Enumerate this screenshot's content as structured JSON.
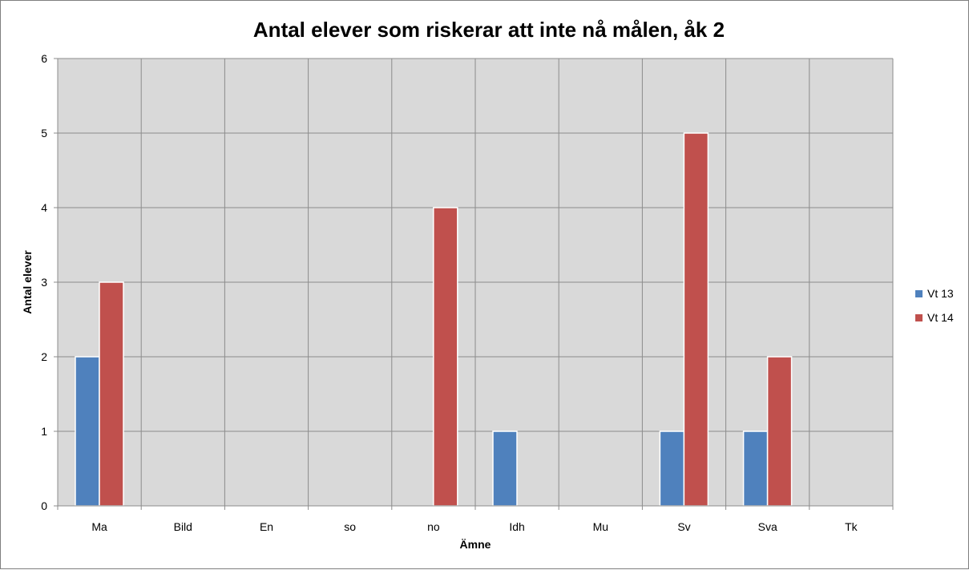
{
  "chart_data": {
    "type": "bar",
    "title": "Antal elever som riskerar att inte nå målen, åk 2",
    "xlabel": "Ämne",
    "ylabel": "Antal elever",
    "categories": [
      "Ma",
      "Bild",
      "En",
      "so",
      "no",
      "Idh",
      "Mu",
      "Sv",
      "Sva",
      "Tk"
    ],
    "series": [
      {
        "name": "Vt 13",
        "color": "#4f81bd",
        "values": [
          2,
          0,
          0,
          0,
          0,
          1,
          0,
          1,
          1,
          0
        ]
      },
      {
        "name": "Vt 14",
        "color": "#c0504d",
        "values": [
          3,
          0,
          0,
          0,
          4,
          0,
          0,
          5,
          2,
          0
        ]
      }
    ],
    "ylim": [
      0,
      6
    ],
    "yticks": [
      0,
      1,
      2,
      3,
      4,
      5,
      6
    ],
    "grid": true,
    "legend_position": "right",
    "plot_background": "#d9d9d9"
  }
}
